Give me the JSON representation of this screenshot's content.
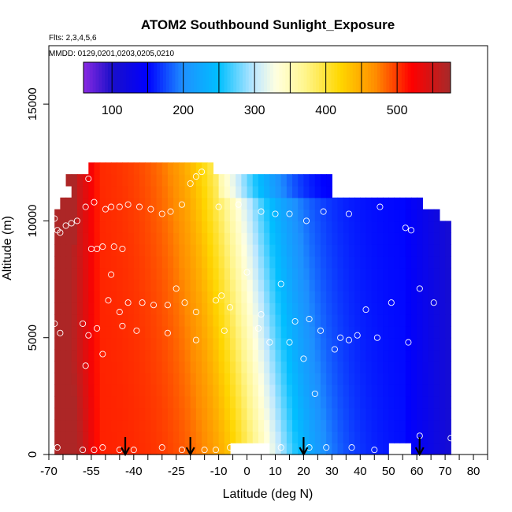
{
  "chart_data": {
    "type": "heatmap",
    "title": "ATOM2 Southbound Sunlight_Exposure",
    "flights_note": "Flts: 2,3,4,5,6",
    "dates_note": "MMDD: 0129,0201,0203,0205,0210",
    "xlabel": "Latitude (deg N)",
    "ylabel": "Altitude (m)",
    "xlim": [
      -70,
      85
    ],
    "ylim": [
      0,
      17500
    ],
    "x_ticks": [
      -70,
      -55,
      -40,
      -25,
      -10,
      0,
      10,
      20,
      30,
      40,
      50,
      60,
      70,
      80
    ],
    "x_minor_ticks": [
      -65,
      -60,
      -50,
      -45,
      -35,
      -30,
      -20,
      -15,
      -5,
      5,
      15,
      25,
      35,
      45,
      55,
      65,
      75,
      85
    ],
    "y_ticks": [
      0,
      5000,
      10000,
      15000
    ],
    "colorbar": {
      "min": 60,
      "max": 575,
      "ticks": [
        100,
        200,
        300,
        400,
        500
      ],
      "breaks": [
        100,
        150,
        200,
        250,
        300,
        350,
        400,
        450,
        500,
        550
      ],
      "stops": [
        {
          "v": 60,
          "c": "#8a2be2"
        },
        {
          "v": 100,
          "c": "#1a0fc9"
        },
        {
          "v": 150,
          "c": "#0000ff"
        },
        {
          "v": 200,
          "c": "#1e90ff"
        },
        {
          "v": 250,
          "c": "#00bfff"
        },
        {
          "v": 300,
          "c": "#bfe8ff"
        },
        {
          "v": 330,
          "c": "#ffffe0"
        },
        {
          "v": 370,
          "c": "#fff68f"
        },
        {
          "v": 420,
          "c": "#ffd700"
        },
        {
          "v": 470,
          "c": "#ff8c00"
        },
        {
          "v": 520,
          "c": "#ff0000"
        },
        {
          "v": 575,
          "c": "#a52a2a"
        }
      ]
    },
    "coverage": [
      {
        "alt": [
          0,
          500
        ],
        "lat": [
          -68,
          72
        ]
      },
      {
        "alt": [
          500,
          11000
        ],
        "lat": [
          -68,
          71
        ]
      },
      {
        "alt": [
          11000,
          12000
        ],
        "lat": [
          -63,
          29
        ]
      },
      {
        "alt": [
          12000,
          12500
        ],
        "lat": [
          -56,
          -13
        ]
      }
    ],
    "missing_regions": [
      {
        "alt": [
          0,
          700
        ],
        "lat": [
          -5,
          8
        ]
      },
      {
        "alt": [
          250,
          700
        ],
        "lat": [
          50,
          58
        ]
      }
    ],
    "surface_profile_points": [
      {
        "alt": 5500,
        "lat": [
          -68,
          56
        ],
        "v": [
          530,
          520,
          490,
          455,
          435,
          420,
          410,
          370,
          320,
          280,
          250,
          220,
          210,
          200,
          190
        ]
      },
      {
        "alt": 1000,
        "lat": [
          -68,
          72
        ],
        "v": [
          540,
          530,
          505,
          470,
          440,
          420,
          400,
          345,
          300,
          265,
          240,
          215,
          200,
          195,
          190
        ]
      }
    ],
    "sample_points": [
      [
        -68,
        10100
      ],
      [
        -67,
        9600
      ],
      [
        -66,
        9500
      ],
      [
        -64,
        9800
      ],
      [
        -62,
        9900
      ],
      [
        -60,
        10000
      ],
      [
        -57,
        10600
      ],
      [
        -56,
        11800
      ],
      [
        -54,
        10800
      ],
      [
        -50,
        10500
      ],
      [
        -48,
        10600
      ],
      [
        -45,
        10600
      ],
      [
        -42,
        10700
      ],
      [
        -38,
        10600
      ],
      [
        -34,
        10500
      ],
      [
        -30,
        10300
      ],
      [
        -27,
        10400
      ],
      [
        -23,
        10700
      ],
      [
        -20,
        11600
      ],
      [
        -18,
        11900
      ],
      [
        -16,
        12100
      ],
      [
        -10,
        10600
      ],
      [
        -3,
        10700
      ],
      [
        5,
        10400
      ],
      [
        10,
        10300
      ],
      [
        15,
        10300
      ],
      [
        21,
        10000
      ],
      [
        27,
        10400
      ],
      [
        36,
        10300
      ],
      [
        47,
        10600
      ],
      [
        56,
        9700
      ],
      [
        58,
        9600
      ],
      [
        61,
        11300
      ],
      [
        63,
        11400
      ],
      [
        -55,
        8800
      ],
      [
        -53,
        8800
      ],
      [
        -51,
        8900
      ],
      [
        -48,
        7700
      ],
      [
        -47,
        8900
      ],
      [
        -44,
        8800
      ],
      [
        -49,
        6600
      ],
      [
        -45,
        6100
      ],
      [
        -42,
        6500
      ],
      [
        -37,
        6500
      ],
      [
        -33,
        6400
      ],
      [
        -28,
        6400
      ],
      [
        -25,
        7100
      ],
      [
        -22,
        6500
      ],
      [
        -18,
        6100
      ],
      [
        -11,
        6600
      ],
      [
        -9,
        6800
      ],
      [
        -6,
        6300
      ],
      [
        0,
        7800
      ],
      [
        5,
        6000
      ],
      [
        12,
        7300
      ],
      [
        17,
        5700
      ],
      [
        22,
        5800
      ],
      [
        26,
        5300
      ],
      [
        33,
        5000
      ],
      [
        39,
        5100
      ],
      [
        42,
        6200
      ],
      [
        46,
        5000
      ],
      [
        51,
        6500
      ],
      [
        57,
        4800
      ],
      [
        61,
        7100
      ],
      [
        66,
        6500
      ],
      [
        -68,
        5600
      ],
      [
        -66,
        5200
      ],
      [
        -58,
        5600
      ],
      [
        -56,
        5100
      ],
      [
        -53,
        5400
      ],
      [
        -51,
        4300
      ],
      [
        -57,
        3800
      ],
      [
        -44,
        5500
      ],
      [
        -39,
        5300
      ],
      [
        -28,
        5200
      ],
      [
        -18,
        4900
      ],
      [
        -8,
        5300
      ],
      [
        4,
        5400
      ],
      [
        8,
        4800
      ],
      [
        15,
        4800
      ],
      [
        20,
        4100
      ],
      [
        24,
        2600
      ],
      [
        31,
        4500
      ],
      [
        36,
        4900
      ],
      [
        -67,
        300
      ],
      [
        -58,
        200
      ],
      [
        -54,
        200
      ],
      [
        -51,
        300
      ],
      [
        -45,
        200
      ],
      [
        -40,
        200
      ],
      [
        -30,
        300
      ],
      [
        -23,
        200
      ],
      [
        -15,
        200
      ],
      [
        -11,
        200
      ],
      [
        -6,
        300
      ],
      [
        4,
        300
      ],
      [
        12,
        300
      ],
      [
        22,
        300
      ],
      [
        28,
        300
      ],
      [
        37,
        300
      ],
      [
        45,
        200
      ],
      [
        52,
        300
      ],
      [
        61,
        800
      ],
      [
        72,
        700
      ]
    ],
    "arrow_latitudes": [
      -43,
      -20,
      20,
      61
    ],
    "legend_placement": "top-inside"
  }
}
